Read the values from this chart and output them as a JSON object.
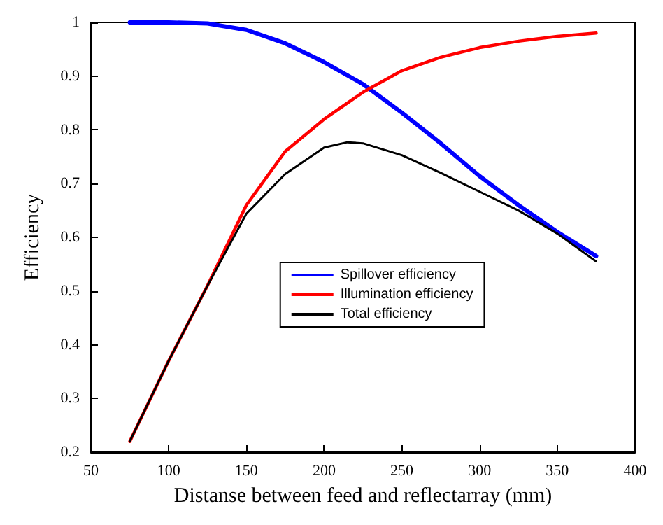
{
  "chart_data": {
    "type": "line",
    "xlabel": "Distanse between feed and reflectarray (mm)",
    "ylabel": "Efficiency",
    "x": [
      75,
      100,
      125,
      150,
      175,
      200,
      225,
      250,
      275,
      300,
      325,
      350,
      375
    ],
    "series": [
      {
        "name": "Spillover efficiency",
        "color": "#0000ff",
        "values": [
          1.0,
          1.0,
          0.998,
          0.986,
          0.961,
          0.926,
          0.885,
          0.832,
          0.775,
          0.714,
          0.66,
          0.61,
          0.565
        ]
      },
      {
        "name": "Illumination efficiency",
        "color": "#ff0000",
        "values": [
          0.22,
          0.37,
          0.51,
          0.66,
          0.76,
          0.82,
          0.87,
          0.91,
          0.935,
          0.953,
          0.965,
          0.974,
          0.98
        ]
      },
      {
        "name": "Total efficiency",
        "color": "#000000",
        "x": [
          75,
          100,
          125,
          150,
          175,
          200,
          215,
          225,
          250,
          275,
          300,
          325,
          350,
          375
        ],
        "values": [
          0.22,
          0.37,
          0.51,
          0.644,
          0.718,
          0.767,
          0.777,
          0.775,
          0.753,
          0.72,
          0.685,
          0.65,
          0.607,
          0.555
        ]
      }
    ],
    "xlim": [
      50,
      400
    ],
    "xticks": [
      50,
      100,
      150,
      200,
      250,
      300,
      350,
      400
    ],
    "ylim": [
      0.2,
      1
    ],
    "yticks": [
      0.2,
      0.3,
      0.4,
      0.5,
      0.6,
      0.7,
      0.8,
      0.9,
      1
    ],
    "grid": false,
    "legend": "center",
    "marker": "none",
    "line_style": "solid"
  }
}
